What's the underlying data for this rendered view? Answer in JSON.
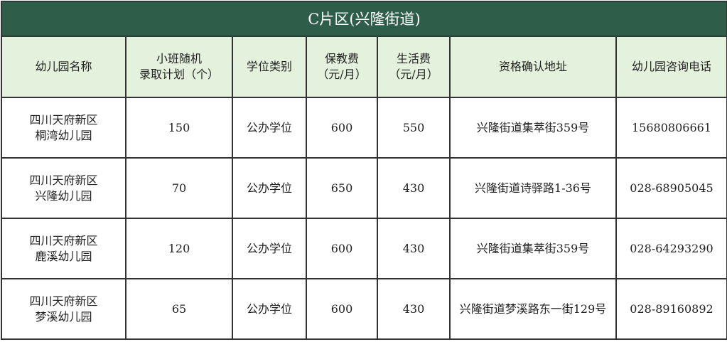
{
  "title": "C片区(兴隆街道)",
  "colors": {
    "title_bg": "#2e5e49",
    "header_bg": "#e4f1dc"
  },
  "headers": [
    [
      "幼儿园名称"
    ],
    [
      "小班随机",
      "录取计划（个）"
    ],
    [
      "学位类别"
    ],
    [
      "保教费",
      "（元/月）"
    ],
    [
      "生活费",
      "（元/月）"
    ],
    [
      "资格确认地址"
    ],
    [
      "幼儿园咨询电话"
    ]
  ],
  "rows": [
    {
      "name": [
        "四川天府新区",
        "桐湾幼儿园"
      ],
      "plan": "150",
      "type": "公办学位",
      "tuition": "600",
      "living": "550",
      "address": "兴隆街道集萃街359号",
      "phone": "15680806661"
    },
    {
      "name": [
        "四川天府新区",
        "兴隆幼儿园"
      ],
      "plan": "70",
      "type": "公办学位",
      "tuition": "650",
      "living": "430",
      "address": "兴隆街道诗驿路1-36号",
      "phone": "028-68905045"
    },
    {
      "name": [
        "四川天府新区",
        "鹿溪幼儿园"
      ],
      "plan": "120",
      "type": "公办学位",
      "tuition": "600",
      "living": "430",
      "address": "兴隆街道集萃街359号",
      "phone": "028-64293290"
    },
    {
      "name": [
        "四川天府新区",
        "梦溪幼儿园"
      ],
      "plan": "65",
      "type": "公办学位",
      "tuition": "600",
      "living": "430",
      "address": "兴隆街道梦溪路东一街129号",
      "phone": "028-89160892"
    }
  ]
}
